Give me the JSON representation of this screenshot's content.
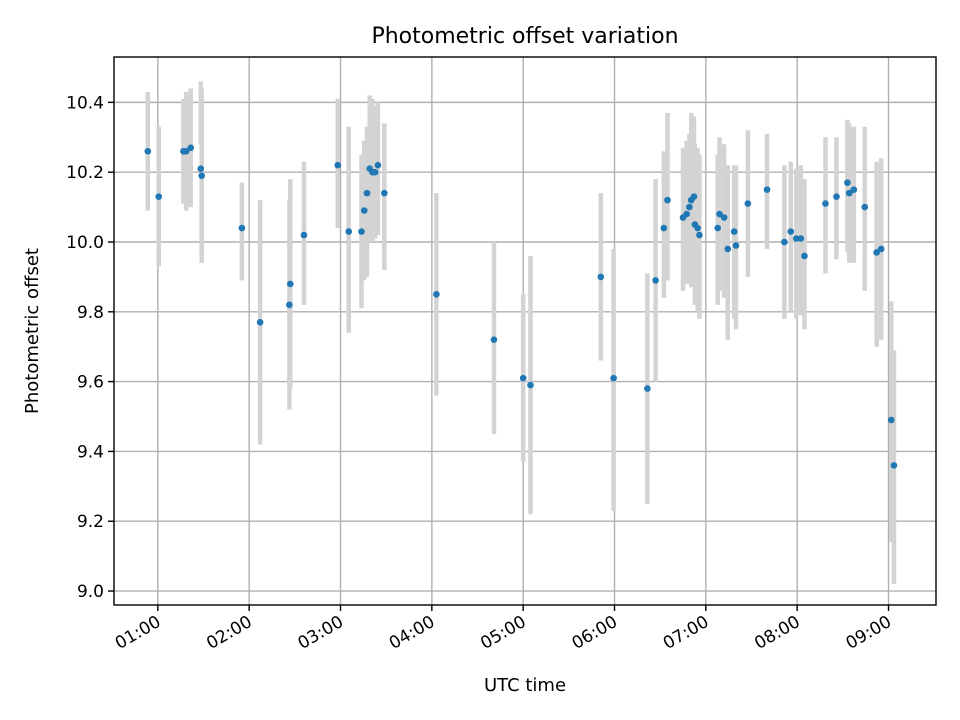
{
  "chart_data": {
    "type": "scatter",
    "title": "Photometric offset variation",
    "xlabel": "UTC time",
    "ylabel": "Photometric offset",
    "xlim_hours": [
      0.52,
      9.52
    ],
    "ylim": [
      8.96,
      10.53
    ],
    "x_ticks": [
      {
        "hour": 1,
        "label": "01:00"
      },
      {
        "hour": 2,
        "label": "02:00"
      },
      {
        "hour": 3,
        "label": "03:00"
      },
      {
        "hour": 4,
        "label": "04:00"
      },
      {
        "hour": 5,
        "label": "05:00"
      },
      {
        "hour": 6,
        "label": "06:00"
      },
      {
        "hour": 7,
        "label": "07:00"
      },
      {
        "hour": 8,
        "label": "08:00"
      },
      {
        "hour": 9,
        "label": "09:00"
      }
    ],
    "y_ticks": [
      9.0,
      9.2,
      9.4,
      9.6,
      9.8,
      10.0,
      10.2,
      10.4
    ],
    "grid": true,
    "colors": {
      "point": "#1f77b4",
      "errorbar": "#d3d3d3",
      "grid": "#b0b0b0"
    },
    "series": [
      {
        "x_hours": [
          0.89,
          1.01,
          1.28,
          1.31,
          1.36,
          1.47,
          1.48,
          1.92,
          2.12,
          2.44,
          2.45,
          2.6,
          2.97,
          3.09,
          3.23,
          3.26,
          3.29,
          3.32,
          3.35,
          3.38,
          3.41,
          3.48,
          4.05,
          4.68,
          5.0,
          5.08,
          5.85,
          5.99,
          6.36,
          6.45,
          6.54,
          6.58,
          6.75,
          6.79,
          6.82,
          6.84,
          6.87,
          6.88,
          6.91,
          6.93,
          7.13,
          7.15,
          7.2,
          7.24,
          7.31,
          7.33,
          7.46,
          7.67,
          7.86,
          7.93,
          7.99,
          8.04,
          8.08,
          8.31,
          8.43,
          8.55,
          8.57,
          8.62,
          8.74,
          8.87,
          8.92,
          9.03,
          9.06
        ],
        "y": [
          10.26,
          10.13,
          10.26,
          10.26,
          10.27,
          10.21,
          10.19,
          10.04,
          9.77,
          9.82,
          9.88,
          10.02,
          10.22,
          10.03,
          10.03,
          10.09,
          10.14,
          10.21,
          10.2,
          10.2,
          10.22,
          10.14,
          9.85,
          9.72,
          9.61,
          9.59,
          9.9,
          9.61,
          9.58,
          9.89,
          10.04,
          10.12,
          10.07,
          10.08,
          10.1,
          10.12,
          10.13,
          10.05,
          10.04,
          10.02,
          10.04,
          10.08,
          10.07,
          9.98,
          10.03,
          9.99,
          10.11,
          10.15,
          10.0,
          10.03,
          10.01,
          10.01,
          9.96,
          10.11,
          10.13,
          10.17,
          10.14,
          10.15,
          10.1,
          9.97,
          9.98,
          9.49,
          9.36
        ],
        "err_low": [
          10.09,
          9.93,
          10.11,
          10.09,
          10.1,
          10.28,
          9.94,
          9.89,
          9.42,
          9.52,
          9.58,
          9.82,
          10.04,
          9.74,
          9.81,
          9.89,
          9.9,
          10.0,
          10.0,
          10.01,
          10.02,
          9.92,
          9.56,
          9.45,
          9.37,
          9.22,
          9.66,
          9.23,
          9.25,
          9.6,
          9.84,
          9.89,
          9.86,
          9.88,
          9.89,
          9.87,
          9.9,
          9.82,
          9.8,
          9.78,
          9.82,
          9.86,
          9.84,
          9.72,
          9.78,
          9.75,
          9.9,
          9.98,
          9.78,
          9.8,
          9.78,
          9.79,
          9.75,
          9.91,
          9.95,
          9.97,
          9.94,
          9.94,
          9.86,
          9.7,
          9.72,
          9.14,
          9.02
        ],
        "err_high": [
          10.43,
          10.33,
          10.41,
          10.43,
          10.44,
          10.46,
          10.44,
          10.17,
          10.12,
          10.12,
          10.18,
          10.23,
          10.41,
          10.33,
          10.25,
          10.29,
          10.33,
          10.42,
          10.41,
          10.39,
          10.4,
          10.34,
          10.14,
          10.0,
          9.85,
          9.96,
          10.14,
          9.98,
          9.91,
          10.18,
          10.26,
          10.37,
          10.27,
          10.29,
          10.31,
          10.37,
          10.36,
          10.28,
          10.27,
          10.25,
          10.25,
          10.3,
          10.28,
          10.22,
          10.22,
          10.22,
          10.32,
          10.31,
          10.22,
          10.23,
          10.21,
          10.22,
          10.18,
          10.3,
          10.3,
          10.35,
          10.34,
          10.33,
          10.33,
          10.23,
          10.24,
          9.83,
          9.69
        ]
      }
    ]
  }
}
